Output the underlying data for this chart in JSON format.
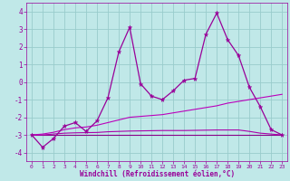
{
  "background_color": "#c0e8e8",
  "grid_color": "#99cccc",
  "line_color": "#990099",
  "xlim": [
    -0.5,
    23.5
  ],
  "ylim": [
    -4.5,
    4.5
  ],
  "yticks": [
    -4,
    -3,
    -2,
    -1,
    0,
    1,
    2,
    3,
    4
  ],
  "xticks": [
    0,
    1,
    2,
    3,
    4,
    5,
    6,
    7,
    8,
    9,
    10,
    11,
    12,
    13,
    14,
    15,
    16,
    17,
    18,
    19,
    20,
    21,
    22,
    23
  ],
  "xlabel": "Windchill (Refroidissement éolien,°C)",
  "series1": [
    -3.0,
    -3.7,
    -3.2,
    -2.5,
    -2.3,
    -2.8,
    -2.2,
    -0.9,
    1.7,
    3.1,
    -0.1,
    -0.8,
    -1.0,
    -0.5,
    0.1,
    0.2,
    2.7,
    3.9,
    2.4,
    1.5,
    -0.3,
    -1.4,
    -2.7,
    -3.0
  ],
  "series2": [
    -3.0,
    -2.95,
    -2.85,
    -2.7,
    -2.6,
    -2.55,
    -2.45,
    -2.3,
    -2.15,
    -2.0,
    -1.95,
    -1.9,
    -1.85,
    -1.75,
    -1.65,
    -1.55,
    -1.45,
    -1.35,
    -1.2,
    -1.1,
    -1.0,
    -0.9,
    -0.8,
    -0.7
  ],
  "series3": [
    -3.0,
    -3.0,
    -2.95,
    -2.9,
    -2.88,
    -2.87,
    -2.86,
    -2.82,
    -2.8,
    -2.78,
    -2.77,
    -2.76,
    -2.75,
    -2.75,
    -2.75,
    -2.74,
    -2.73,
    -2.72,
    -2.72,
    -2.72,
    -2.8,
    -2.9,
    -2.95,
    -3.0
  ],
  "series4": [
    -3.0,
    -3.0,
    -3.0,
    -3.0,
    -3.0,
    -3.0,
    -3.0,
    -3.0,
    -3.0,
    -3.0,
    -3.0,
    -3.0,
    -3.0,
    -3.0,
    -3.0,
    -3.0,
    -3.0,
    -3.0,
    -3.0,
    -3.0,
    -3.0,
    -3.0,
    -3.0,
    -3.0
  ]
}
